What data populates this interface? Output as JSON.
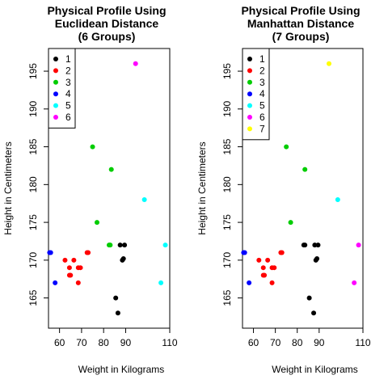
{
  "chart_data": [
    {
      "type": "scatter",
      "title_lines": [
        "Physical Profile Using",
        "Euclidean Distance",
        "(6 Groups)"
      ],
      "xlabel": "Weight in Kilograms",
      "ylabel": "Height in Centimeters",
      "xlim": [
        55,
        110
      ],
      "ylim": [
        161,
        198
      ],
      "xticks": [
        60,
        70,
        80,
        90,
        110
      ],
      "yticks": [
        165,
        170,
        175,
        180,
        185,
        190,
        195
      ],
      "legend_position": "top-left",
      "legend": [
        {
          "label": "1",
          "color": "#000000"
        },
        {
          "label": "2",
          "color": "#ff0000"
        },
        {
          "label": "3",
          "color": "#00cd00"
        },
        {
          "label": "4",
          "color": "#0000ff"
        },
        {
          "label": "5",
          "color": "#00ffff"
        },
        {
          "label": "6",
          "color": "#ff00ff"
        }
      ],
      "series": [
        {
          "group": 1,
          "points": [
            [
              86.5,
              163
            ],
            [
              85.5,
              165
            ],
            [
              88.5,
              170
            ],
            [
              89,
              170.2
            ],
            [
              87.5,
              172
            ],
            [
              89.5,
              172
            ]
          ]
        },
        {
          "group": 2,
          "points": [
            [
              62.5,
              170
            ],
            [
              66.5,
              170
            ],
            [
              64.5,
              169
            ],
            [
              68.5,
              169
            ],
            [
              69.5,
              169
            ],
            [
              64.5,
              168
            ],
            [
              65,
              168
            ],
            [
              68.5,
              167
            ],
            [
              72.5,
              171
            ],
            [
              73,
              171
            ]
          ]
        },
        {
          "group": 3,
          "points": [
            [
              75,
              185
            ],
            [
              83.5,
              182
            ],
            [
              77,
              175
            ],
            [
              82.5,
              172
            ],
            [
              83,
              172
            ]
          ]
        },
        {
          "group": 4,
          "points": [
            [
              55.5,
              171
            ],
            [
              56,
              171
            ],
            [
              58,
              167
            ]
          ]
        },
        {
          "group": 5,
          "points": [
            [
              98.5,
              178
            ],
            [
              108,
              172
            ],
            [
              106,
              167
            ]
          ]
        },
        {
          "group": 6,
          "points": [
            [
              94.5,
              196
            ]
          ]
        }
      ]
    },
    {
      "type": "scatter",
      "title_lines": [
        "Physical Profile Using",
        "Manhattan Distance",
        "(7 Groups)"
      ],
      "xlabel": "Weight in Kilograms",
      "ylabel": "Height in Centimeters",
      "xlim": [
        55,
        110
      ],
      "ylim": [
        161,
        198
      ],
      "xticks": [
        60,
        70,
        80,
        90,
        110
      ],
      "yticks": [
        165,
        170,
        175,
        180,
        185,
        190,
        195
      ],
      "legend_position": "top-left",
      "legend": [
        {
          "label": "1",
          "color": "#000000"
        },
        {
          "label": "2",
          "color": "#ff0000"
        },
        {
          "label": "3",
          "color": "#00cd00"
        },
        {
          "label": "4",
          "color": "#0000ff"
        },
        {
          "label": "5",
          "color": "#00ffff"
        },
        {
          "label": "6",
          "color": "#ff00ff"
        },
        {
          "label": "7",
          "color": "#ffff00"
        }
      ],
      "series": [
        {
          "group": 1,
          "points": [
            [
              87.5,
              163
            ],
            [
              85.5,
              165
            ],
            [
              88.5,
              170
            ],
            [
              89,
              170.2
            ],
            [
              83,
              172
            ],
            [
              83.5,
              172
            ],
            [
              88,
              172
            ],
            [
              89.5,
              172
            ]
          ]
        },
        {
          "group": 2,
          "points": [
            [
              62.5,
              170
            ],
            [
              66.5,
              170
            ],
            [
              64.5,
              169
            ],
            [
              68.5,
              169
            ],
            [
              69.5,
              169
            ],
            [
              64.5,
              168
            ],
            [
              65,
              168
            ],
            [
              68.5,
              167
            ],
            [
              72.5,
              171
            ],
            [
              73,
              171
            ]
          ]
        },
        {
          "group": 3,
          "points": [
            [
              75,
              185
            ],
            [
              83.5,
              182
            ],
            [
              77,
              175
            ]
          ]
        },
        {
          "group": 4,
          "points": [
            [
              55.5,
              171
            ],
            [
              56,
              171
            ],
            [
              58,
              167
            ]
          ]
        },
        {
          "group": 5,
          "points": [
            [
              98.5,
              178
            ]
          ]
        },
        {
          "group": 6,
          "points": [
            [
              108,
              172
            ],
            [
              106,
              167
            ]
          ]
        },
        {
          "group": 7,
          "points": [
            [
              94.5,
              196
            ]
          ]
        }
      ]
    }
  ]
}
